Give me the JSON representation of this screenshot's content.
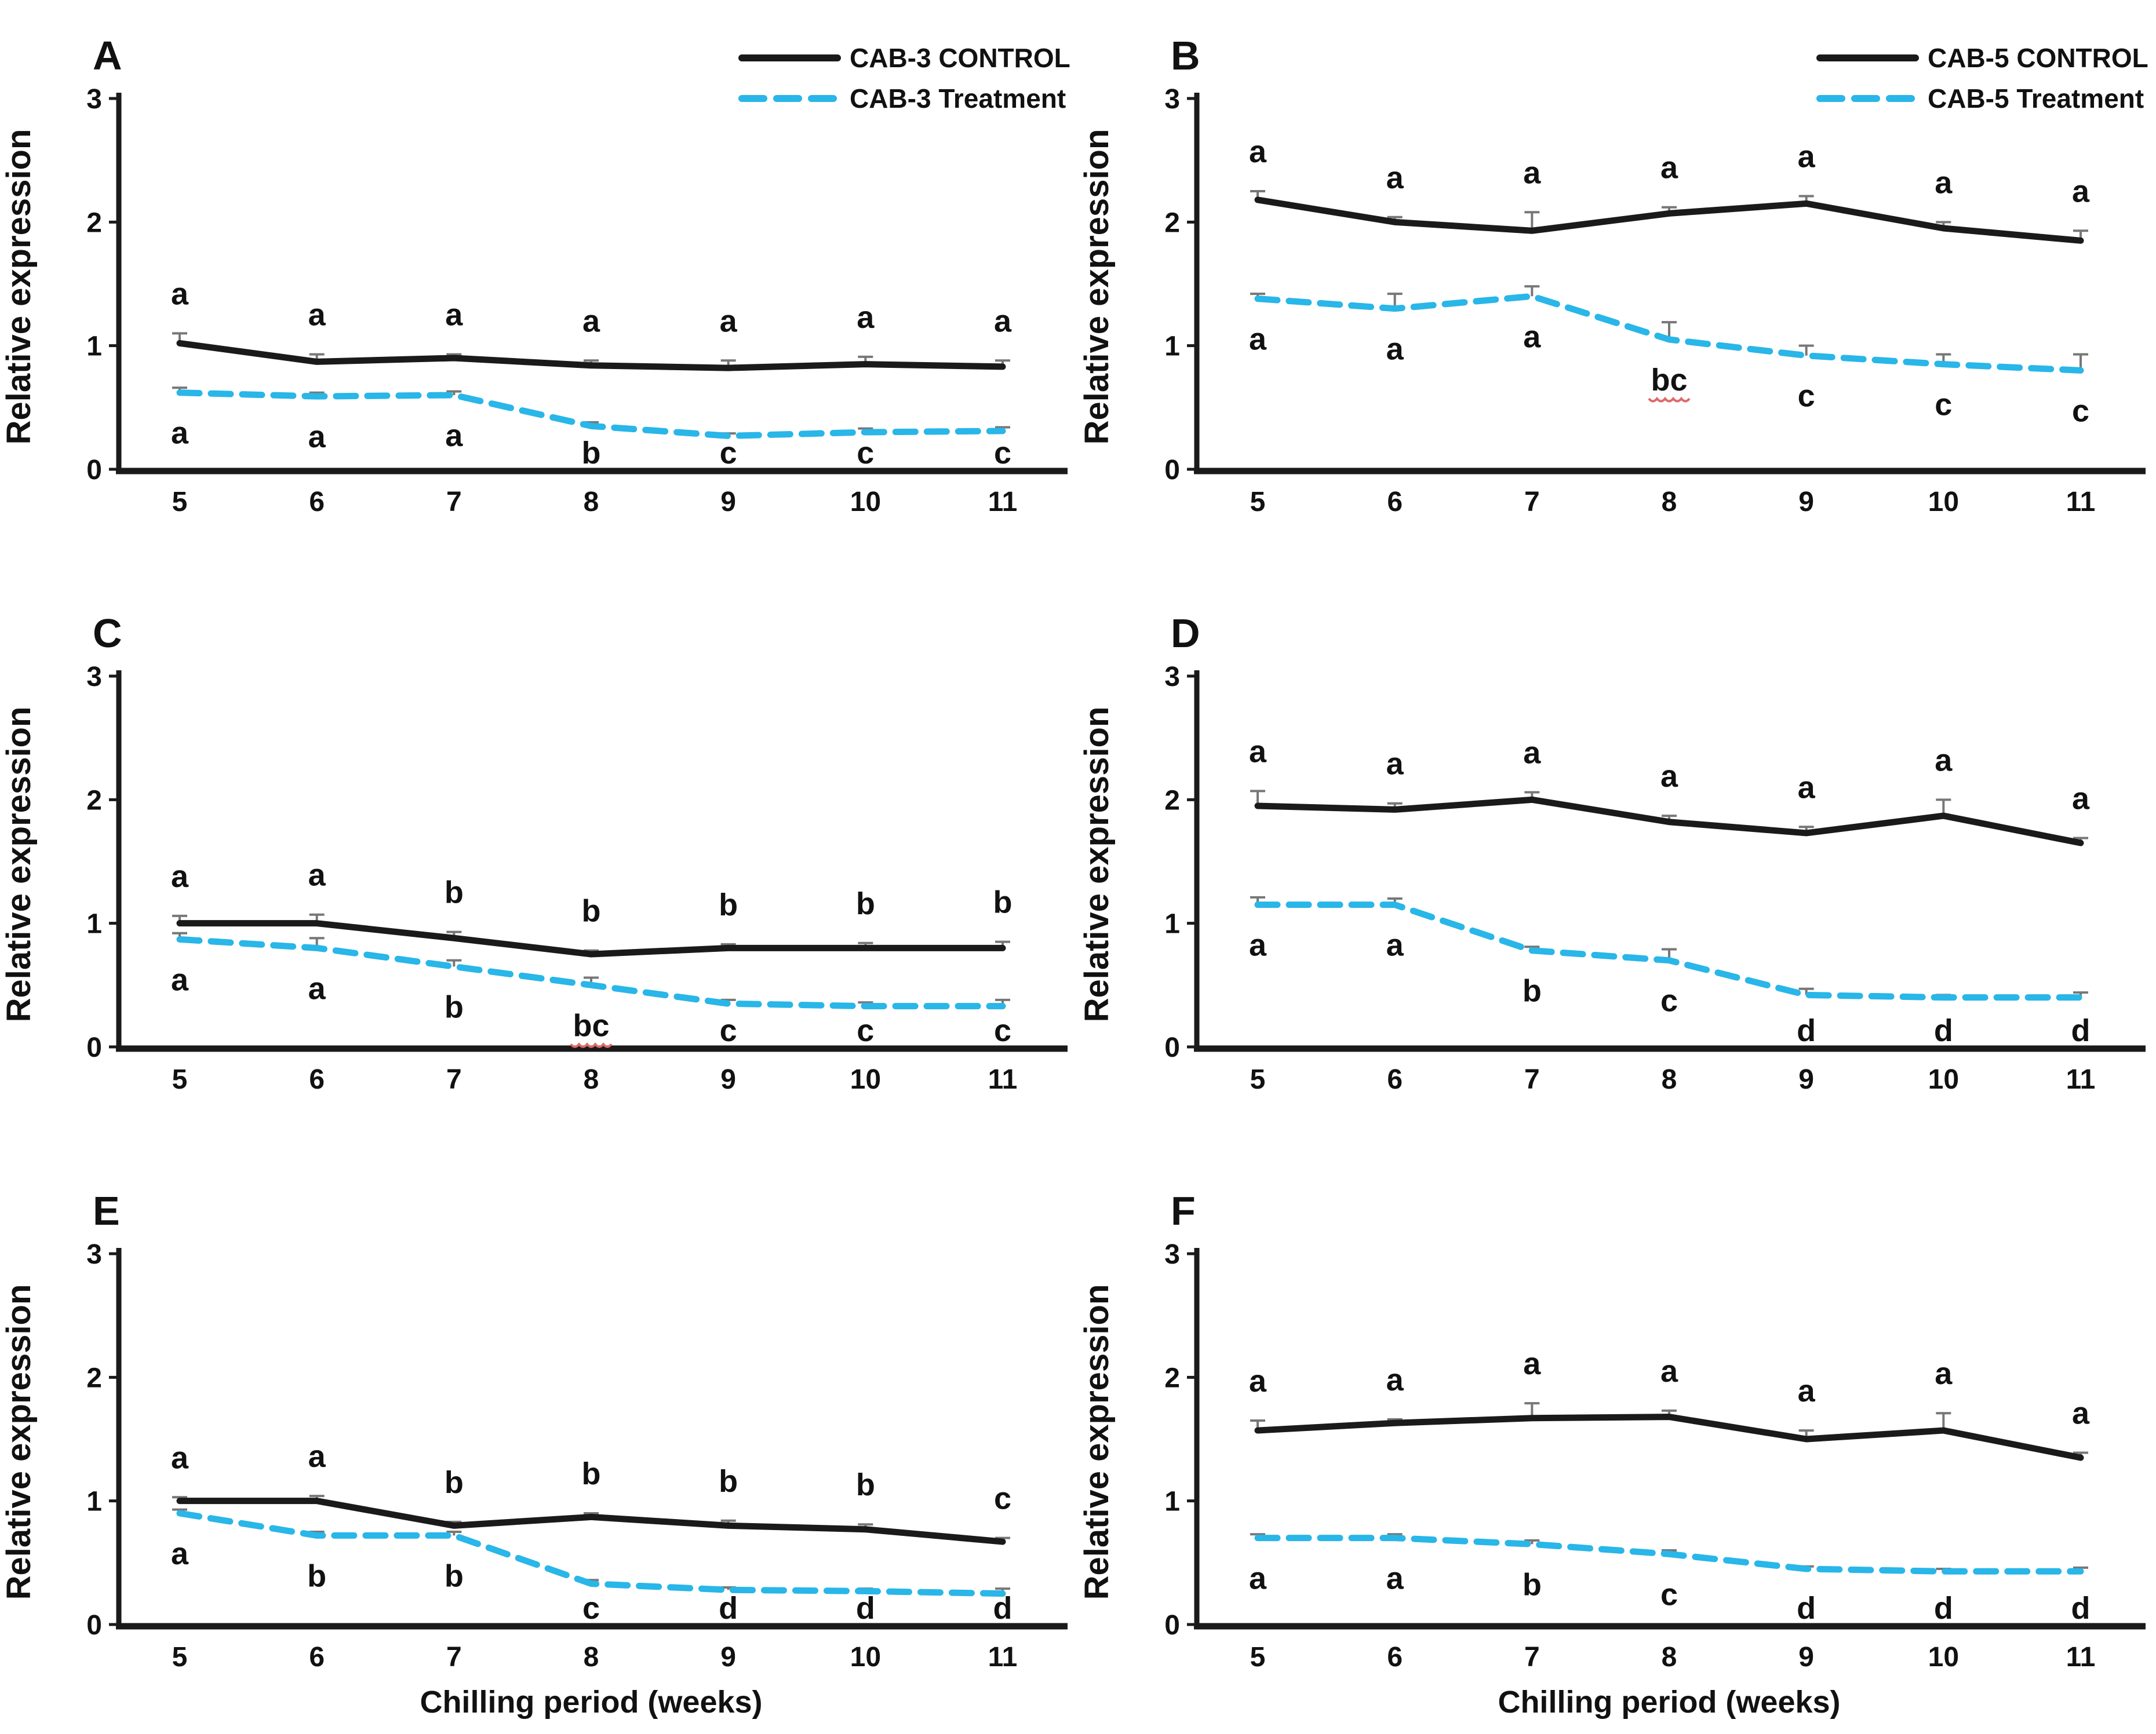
{
  "figure": {
    "ylabel": "Relative expression",
    "xlabel": "Chilling period (weeks)",
    "y_ticks": [
      0,
      1,
      2,
      3
    ],
    "ylim": [
      0,
      3
    ],
    "colors": {
      "control": "#1a1a1a",
      "treatment": "#29b6e8",
      "axis": "#1a1a1a",
      "error_bar": "#777777",
      "sig_letter": "#111111",
      "red_underline": "#dd6a6a"
    }
  },
  "chart_data": [
    {
      "type": "line",
      "panel": "A",
      "x": [
        5,
        6,
        7,
        8,
        9,
        10,
        11
      ],
      "xlabel": "",
      "ylabel": "Relative expression",
      "ylim": [
        0,
        3
      ],
      "legend": [
        "CAB-3 CONTROL",
        "CAB-3 Treatment"
      ],
      "legend_position": "top-right",
      "series": [
        {
          "role": "control",
          "style": "solid-black",
          "values": [
            1.02,
            0.87,
            0.9,
            0.84,
            0.82,
            0.85,
            0.83
          ],
          "errors": [
            0.08,
            0.06,
            0.03,
            0.04,
            0.06,
            0.06,
            0.05
          ],
          "sig_letters": [
            "a",
            "a",
            "a",
            "a",
            "a",
            "a",
            "a"
          ],
          "letters_position": "above",
          "red_underline_at": []
        },
        {
          "role": "treatment",
          "style": "dashed-cyan",
          "values": [
            0.62,
            0.59,
            0.6,
            0.35,
            0.27,
            0.3,
            0.31
          ],
          "errors": [
            0.04,
            0.03,
            0.03,
            0.03,
            0.02,
            0.03,
            0.03
          ],
          "sig_letters": [
            "a",
            "a",
            "a",
            "b",
            "c",
            "c",
            "c"
          ],
          "letters_position": "below",
          "red_underline_at": []
        }
      ]
    },
    {
      "type": "line",
      "panel": "B",
      "x": [
        5,
        6,
        7,
        8,
        9,
        10,
        11
      ],
      "xlabel": "",
      "ylabel": "Relative expression",
      "ylim": [
        0,
        3
      ],
      "legend": [
        "CAB-5 CONTROL",
        "CAB-5 Treatment"
      ],
      "legend_position": "top-right",
      "series": [
        {
          "role": "control",
          "style": "solid-black",
          "values": [
            2.18,
            2.0,
            1.93,
            2.07,
            2.15,
            1.95,
            1.85
          ],
          "errors": [
            0.07,
            0.04,
            0.15,
            0.05,
            0.06,
            0.05,
            0.08
          ],
          "sig_letters": [
            "a",
            "a",
            "a",
            "a",
            "a",
            "a",
            "a"
          ],
          "letters_position": "above",
          "red_underline_at": []
        },
        {
          "role": "treatment",
          "style": "dashed-cyan",
          "values": [
            1.38,
            1.3,
            1.4,
            1.05,
            0.92,
            0.85,
            0.8
          ],
          "errors": [
            0.04,
            0.12,
            0.08,
            0.14,
            0.08,
            0.08,
            0.13
          ],
          "sig_letters": [
            "a",
            "a",
            "a",
            "bc",
            "c",
            "c",
            "c"
          ],
          "letters_position": "below",
          "red_underline_at": [
            3
          ]
        }
      ]
    },
    {
      "type": "line",
      "panel": "C",
      "x": [
        5,
        6,
        7,
        8,
        9,
        10,
        11
      ],
      "xlabel": "",
      "ylabel": "Relative expression",
      "ylim": [
        0,
        3
      ],
      "legend": [],
      "series": [
        {
          "role": "control",
          "style": "solid-black",
          "values": [
            1.0,
            1.0,
            0.88,
            0.75,
            0.8,
            0.8,
            0.8
          ],
          "errors": [
            0.06,
            0.07,
            0.05,
            0.03,
            0.03,
            0.04,
            0.05
          ],
          "sig_letters": [
            "a",
            "a",
            "b",
            "b",
            "b",
            "b",
            "b"
          ],
          "letters_position": "above",
          "red_underline_at": []
        },
        {
          "role": "treatment",
          "style": "dashed-cyan",
          "values": [
            0.87,
            0.8,
            0.65,
            0.5,
            0.35,
            0.33,
            0.33
          ],
          "errors": [
            0.05,
            0.08,
            0.05,
            0.06,
            0.03,
            0.03,
            0.05
          ],
          "sig_letters": [
            "a",
            "a",
            "b",
            "bc",
            "c",
            "c",
            "c"
          ],
          "letters_position": "below",
          "red_underline_at": [
            3
          ]
        }
      ]
    },
    {
      "type": "line",
      "panel": "D",
      "x": [
        5,
        6,
        7,
        8,
        9,
        10,
        11
      ],
      "xlabel": "",
      "ylabel": "Relative expression",
      "ylim": [
        0,
        3
      ],
      "legend": [],
      "series": [
        {
          "role": "control",
          "style": "solid-black",
          "values": [
            1.95,
            1.92,
            2.0,
            1.82,
            1.73,
            1.87,
            1.65
          ],
          "errors": [
            0.12,
            0.05,
            0.06,
            0.05,
            0.05,
            0.13,
            0.04
          ],
          "sig_letters": [
            "a",
            "a",
            "a",
            "a",
            "a",
            "a",
            "a"
          ],
          "letters_position": "above",
          "red_underline_at": []
        },
        {
          "role": "treatment",
          "style": "dashed-cyan",
          "values": [
            1.15,
            1.15,
            0.78,
            0.7,
            0.42,
            0.4,
            0.4
          ],
          "errors": [
            0.06,
            0.05,
            0.03,
            0.09,
            0.05,
            0.02,
            0.04
          ],
          "sig_letters": [
            "a",
            "a",
            "b",
            "c",
            "d",
            "d",
            "d"
          ],
          "letters_position": "below",
          "red_underline_at": []
        }
      ]
    },
    {
      "type": "line",
      "panel": "E",
      "x": [
        5,
        6,
        7,
        8,
        9,
        10,
        11
      ],
      "xlabel": "Chilling period (weeks)",
      "ylabel": "Relative expression",
      "ylim": [
        0,
        3
      ],
      "legend": [],
      "series": [
        {
          "role": "control",
          "style": "solid-black",
          "values": [
            1.0,
            1.0,
            0.8,
            0.87,
            0.8,
            0.77,
            0.67
          ],
          "errors": [
            0.03,
            0.04,
            0.03,
            0.03,
            0.04,
            0.04,
            0.03
          ],
          "sig_letters": [
            "a",
            "a",
            "b",
            "b",
            "b",
            "b",
            "c"
          ],
          "letters_position": "above",
          "red_underline_at": []
        },
        {
          "role": "treatment",
          "style": "dashed-cyan",
          "values": [
            0.9,
            0.72,
            0.72,
            0.33,
            0.28,
            0.27,
            0.25
          ],
          "errors": [
            0.03,
            0.03,
            0.03,
            0.03,
            0.02,
            0.02,
            0.04
          ],
          "sig_letters": [
            "a",
            "b",
            "b",
            "c",
            "d",
            "d",
            "d"
          ],
          "letters_position": "below",
          "red_underline_at": []
        }
      ]
    },
    {
      "type": "line",
      "panel": "F",
      "x": [
        5,
        6,
        7,
        8,
        9,
        10,
        11
      ],
      "xlabel": "Chilling period (weeks)",
      "ylabel": "Relative expression",
      "ylim": [
        0,
        3
      ],
      "legend": [],
      "series": [
        {
          "role": "control",
          "style": "solid-black",
          "values": [
            1.57,
            1.63,
            1.67,
            1.68,
            1.5,
            1.57,
            1.35
          ],
          "errors": [
            0.08,
            0.03,
            0.12,
            0.05,
            0.07,
            0.14,
            0.04
          ],
          "sig_letters": [
            "a",
            "a",
            "a",
            "a",
            "a",
            "a",
            "a"
          ],
          "letters_position": "above",
          "red_underline_at": []
        },
        {
          "role": "treatment",
          "style": "dashed-cyan",
          "values": [
            0.7,
            0.7,
            0.65,
            0.57,
            0.45,
            0.43,
            0.43
          ],
          "errors": [
            0.03,
            0.03,
            0.03,
            0.03,
            0.02,
            0.02,
            0.03
          ],
          "sig_letters": [
            "a",
            "a",
            "b",
            "c",
            "d",
            "d",
            "d"
          ],
          "letters_position": "below",
          "red_underline_at": []
        }
      ]
    }
  ]
}
